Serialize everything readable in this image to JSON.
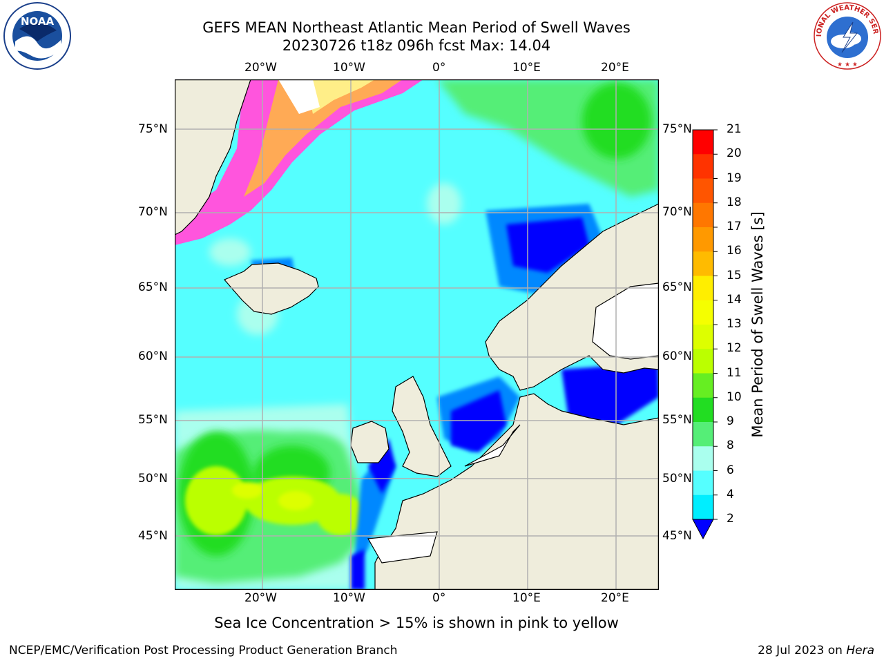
{
  "title": {
    "line1": "GEFS MEAN Northeast Atlantic Mean Period of Swell Waves",
    "line2": "20230726 t18z 096h fcst   Max: 14.04"
  },
  "logos": {
    "left": {
      "name": "noaa-logo",
      "text": "NOAA"
    },
    "right": {
      "name": "nws-logo",
      "text": "NATIONAL WEATHER SERVICE"
    }
  },
  "axes": {
    "lon_labels": [
      "20°W",
      "10°W",
      "0°",
      "10°E",
      "20°E"
    ],
    "lat_labels": [
      "75°N",
      "70°N",
      "65°N",
      "60°N",
      "55°N",
      "50°N",
      "45°N"
    ]
  },
  "colorbar": {
    "title": "Mean Period of Swell Waves [s]",
    "labels": [
      "21",
      "20",
      "19",
      "18",
      "17",
      "16",
      "15",
      "14",
      "13",
      "12",
      "11",
      "10",
      "9",
      "8",
      "6",
      "4",
      "2"
    ],
    "colors": [
      "#ff0000",
      "#ff3300",
      "#ff5500",
      "#ff7700",
      "#ff9900",
      "#ffbb00",
      "#ffee00",
      "#f5ff00",
      "#ddff00",
      "#bbff00",
      "#66ee22",
      "#22dd22",
      "#55ee77",
      "#aaffee",
      "#55ffff",
      "#00eeff",
      "#0088ff",
      "#0000ff"
    ],
    "extend": "min-triangle"
  },
  "map_colors": {
    "land": "#efeddc",
    "nodata": "#ffffff",
    "ice_pink": "#ff55dd",
    "ice_orange": "#ffaa55",
    "ice_yellow": "#ffee88"
  },
  "caption": "Sea Ice Concentration > 15% is shown in pink to yellow",
  "footer": {
    "left": "NCEP/EMC/Verification Post Processing Product Generation Branch",
    "right_prefix": "28 Jul 2023 on",
    "right_machine": "Hera"
  }
}
